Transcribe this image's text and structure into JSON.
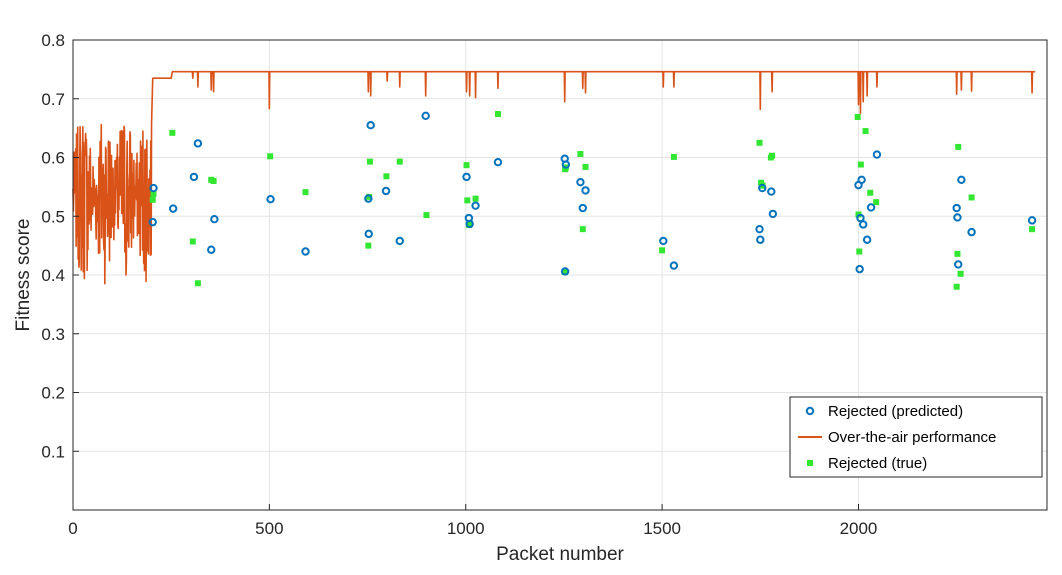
{
  "chart_data": {
    "type": "scatter",
    "xlabel": "Packet number",
    "ylabel": "Fitness score",
    "xlim": [
      0,
      2480
    ],
    "ylim": [
      0,
      0.8
    ],
    "x_ticks": [
      0,
      500,
      1000,
      1500,
      2000
    ],
    "y_ticks": [
      0.1,
      0.2,
      0.3,
      0.4,
      0.5,
      0.6,
      0.7,
      0.8
    ],
    "x_tick_labels": [
      "0",
      "500",
      "1000",
      "1500",
      "2000"
    ],
    "y_tick_labels": [
      "0.1",
      "0.2",
      "0.3",
      "0.4",
      "0.5",
      "0.6",
      "0.7",
      "0.8"
    ],
    "grid": true,
    "legend_position": "bottom-right",
    "series": [
      {
        "name": "Rejected (predicted)",
        "kind": "scatter-open-circle",
        "color": "#0072BD",
        "points": [
          [
            205,
            0.548
          ],
          [
            203,
            0.49
          ],
          [
            255,
            0.513
          ],
          [
            308,
            0.567
          ],
          [
            318,
            0.624
          ],
          [
            352,
            0.443
          ],
          [
            360,
            0.495
          ],
          [
            503,
            0.529
          ],
          [
            592,
            0.44
          ],
          [
            752,
            0.53
          ],
          [
            758,
            0.655
          ],
          [
            753,
            0.47
          ],
          [
            797,
            0.543
          ],
          [
            832,
            0.458
          ],
          [
            898,
            0.671
          ],
          [
            1002,
            0.567
          ],
          [
            1008,
            0.497
          ],
          [
            1010,
            0.487
          ],
          [
            1025,
            0.518
          ],
          [
            1082,
            0.592
          ],
          [
            1252,
            0.598
          ],
          [
            1255,
            0.588
          ],
          [
            1253,
            0.406
          ],
          [
            1292,
            0.558
          ],
          [
            1298,
            0.514
          ],
          [
            1305,
            0.544
          ],
          [
            1503,
            0.458
          ],
          [
            1530,
            0.416
          ],
          [
            1748,
            0.478
          ],
          [
            1750,
            0.46
          ],
          [
            1755,
            0.548
          ],
          [
            1778,
            0.542
          ],
          [
            1782,
            0.504
          ],
          [
            2000,
            0.553
          ],
          [
            2003,
            0.41
          ],
          [
            2005,
            0.497
          ],
          [
            2008,
            0.562
          ],
          [
            2012,
            0.486
          ],
          [
            2022,
            0.46
          ],
          [
            2032,
            0.515
          ],
          [
            2047,
            0.605
          ],
          [
            2250,
            0.514
          ],
          [
            2252,
            0.498
          ],
          [
            2254,
            0.418
          ],
          [
            2262,
            0.562
          ],
          [
            2288,
            0.473
          ],
          [
            2442,
            0.493
          ]
        ]
      },
      {
        "name": "Over-the-air performance",
        "kind": "line",
        "color": "#D95319",
        "baseline": 0.746,
        "dips": [
          [
            305,
            0.735
          ],
          [
            318,
            0.72
          ],
          [
            352,
            0.715
          ],
          [
            358,
            0.712
          ],
          [
            500,
            0.683
          ],
          [
            752,
            0.712
          ],
          [
            758,
            0.705
          ],
          [
            800,
            0.73
          ],
          [
            832,
            0.72
          ],
          [
            898,
            0.705
          ],
          [
            1002,
            0.712
          ],
          [
            1010,
            0.705
          ],
          [
            1025,
            0.702
          ],
          [
            1082,
            0.718
          ],
          [
            1252,
            0.695
          ],
          [
            1298,
            0.718
          ],
          [
            1305,
            0.71
          ],
          [
            1503,
            0.72
          ],
          [
            1530,
            0.72
          ],
          [
            1750,
            0.682
          ],
          [
            1780,
            0.712
          ],
          [
            2000,
            0.69
          ],
          [
            2005,
            0.675
          ],
          [
            2012,
            0.695
          ],
          [
            2022,
            0.705
          ],
          [
            2047,
            0.72
          ],
          [
            2250,
            0.708
          ],
          [
            2262,
            0.715
          ],
          [
            2288,
            0.713
          ],
          [
            2442,
            0.71
          ]
        ]
      },
      {
        "name": "Rejected (true)",
        "kind": "scatter-filled-square",
        "color": "#32E632",
        "points": [
          [
            203,
            0.528
          ],
          [
            205,
            0.538
          ],
          [
            253,
            0.642
          ],
          [
            305,
            0.457
          ],
          [
            318,
            0.386
          ],
          [
            352,
            0.562
          ],
          [
            358,
            0.56
          ],
          [
            502,
            0.602
          ],
          [
            592,
            0.541
          ],
          [
            752,
            0.45
          ],
          [
            754,
            0.533
          ],
          [
            756,
            0.593
          ],
          [
            798,
            0.568
          ],
          [
            832,
            0.593
          ],
          [
            900,
            0.502
          ],
          [
            1002,
            0.587
          ],
          [
            1004,
            0.527
          ],
          [
            1008,
            0.485
          ],
          [
            1010,
            0.487
          ],
          [
            1025,
            0.53
          ],
          [
            1082,
            0.674
          ],
          [
            1252,
            0.405
          ],
          [
            1253,
            0.58
          ],
          [
            1255,
            0.583
          ],
          [
            1292,
            0.606
          ],
          [
            1298,
            0.478
          ],
          [
            1305,
            0.584
          ],
          [
            1500,
            0.442
          ],
          [
            1530,
            0.601
          ],
          [
            1748,
            0.625
          ],
          [
            1752,
            0.557
          ],
          [
            1756,
            0.552
          ],
          [
            1777,
            0.6
          ],
          [
            1780,
            0.603
          ],
          [
            1998,
            0.669
          ],
          [
            2000,
            0.503
          ],
          [
            2002,
            0.44
          ],
          [
            2006,
            0.588
          ],
          [
            2018,
            0.645
          ],
          [
            2030,
            0.54
          ],
          [
            2045,
            0.524
          ],
          [
            2250,
            0.38
          ],
          [
            2252,
            0.436
          ],
          [
            2254,
            0.618
          ],
          [
            2260,
            0.402
          ],
          [
            2288,
            0.532
          ],
          [
            2442,
            0.478
          ]
        ]
      }
    ]
  }
}
